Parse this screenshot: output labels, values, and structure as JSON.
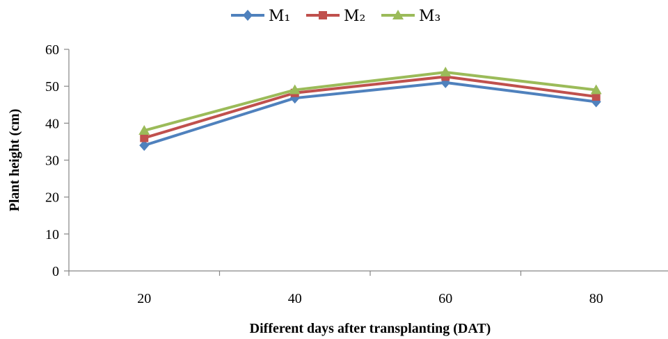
{
  "chart_data": {
    "type": "line",
    "title": "",
    "xlabel": "Different days after transplanting (DAT)",
    "ylabel": "Plant height (cm)",
    "categories": [
      "20",
      "40",
      "60",
      "80"
    ],
    "ylim": [
      0,
      60
    ],
    "yticks": [
      0,
      10,
      20,
      30,
      40,
      50,
      60
    ],
    "grid": false,
    "legend_position": "top",
    "series": [
      {
        "name": "M₁",
        "values": [
          34,
          46.8,
          51,
          45.8
        ],
        "color": "#4F81BD",
        "marker": "diamond"
      },
      {
        "name": "M₂",
        "values": [
          36,
          48.2,
          52.6,
          47.2
        ],
        "color": "#C0504D",
        "marker": "square"
      },
      {
        "name": "M₃",
        "values": [
          38,
          49,
          53.8,
          49
        ],
        "color": "#9BBB59",
        "marker": "triangle"
      }
    ]
  }
}
